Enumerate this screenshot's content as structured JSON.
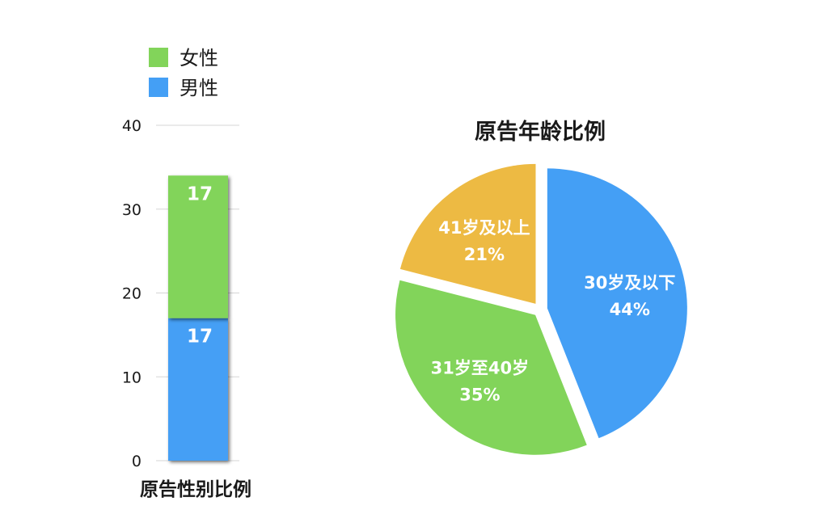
{
  "colors": {
    "female": "#82d45a",
    "male": "#449ff5",
    "age_under30": "#449ff5",
    "age_31_40": "#82d45a",
    "age_over41": "#edba43",
    "grid": "#d5d5d5",
    "text": "#1a1a1a",
    "label_on_mark": "#ffffff"
  },
  "chart_data": [
    {
      "type": "bar",
      "stacked": true,
      "title": "原告性别比例",
      "categories": [
        ""
      ],
      "series": [
        {
          "name": "男性",
          "values": [
            17
          ]
        },
        {
          "name": "女性",
          "values": [
            17
          ]
        }
      ],
      "data_labels": [
        "17",
        "17"
      ],
      "ylim": [
        0,
        40
      ],
      "yticks": [
        "0",
        "10",
        "20",
        "30",
        "40"
      ],
      "grid": true,
      "legend": {
        "position": "top-left",
        "entries": [
          "女性",
          "男性"
        ]
      }
    },
    {
      "type": "pie",
      "title": "原告年龄比例",
      "slices": [
        {
          "label": "30岁及以下",
          "value": 44,
          "pct_label": "44%"
        },
        {
          "label": "31岁至40岁",
          "value": 35,
          "pct_label": "35%"
        },
        {
          "label": "41岁及以上",
          "value": 21,
          "pct_label": "21%"
        }
      ]
    }
  ]
}
